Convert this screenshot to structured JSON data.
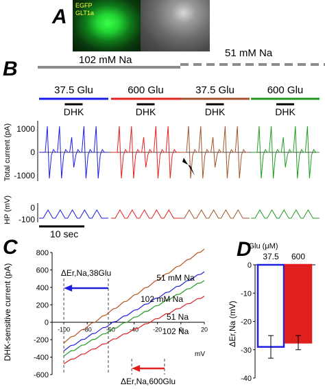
{
  "panel_a": {
    "label": "A",
    "image_labels": [
      "EGFP",
      "GLT1a"
    ]
  },
  "panel_b": {
    "label": "B",
    "bath_conditions": [
      "102 mM Na",
      "51 mM Na"
    ],
    "glu_conditions": [
      {
        "label": "37.5 Glu",
        "color": "#1a1ae6"
      },
      {
        "label": "600 Glu",
        "color": "#e61e1e"
      },
      {
        "label": "37.5 Glu",
        "color": "#a0522d"
      },
      {
        "label": "600 Glu",
        "color": "#1f9a1f"
      }
    ],
    "dhk_label": "DHK",
    "current_axis": {
      "ylabel": "Total current (pA)",
      "ticks": [
        "1000",
        "0",
        "-1000"
      ]
    },
    "hp_axis": {
      "ylabel": "HP (mV)",
      "ticks": [
        "0",
        "-100"
      ]
    },
    "scale_bar_label": "10 sec"
  },
  "chart_data": [
    {
      "panel": "C",
      "type": "line",
      "xlabel": "mV",
      "ylabel": "DHK-sensitive current (pA)",
      "xlim": [
        -110,
        20
      ],
      "ylim": [
        -600,
        800
      ],
      "xticks": [
        -100,
        -80,
        -60,
        -40,
        -20,
        0,
        20
      ],
      "yticks": [
        800,
        600,
        400,
        200,
        0,
        -200,
        -400,
        -600
      ],
      "series": [
        {
          "name": "51 mM Na",
          "color": "#b5541c",
          "x": [
            -100,
            20
          ],
          "y": [
            -230,
            840
          ]
        },
        {
          "name": "102 mM Na",
          "color": "#1f1fe0",
          "x": [
            -100,
            20
          ],
          "y": [
            -320,
            580
          ]
        },
        {
          "name": "51 Na",
          "color": "#1f9a1f",
          "x": [
            -100,
            20
          ],
          "y": [
            -380,
            480
          ]
        },
        {
          "name": "102 Na",
          "color": "#e01f1f",
          "x": [
            -100,
            20
          ],
          "y": [
            -470,
            300
          ]
        }
      ],
      "annotations": [
        {
          "label": "ΔEr,Na,38Glu",
          "color": "#1f1fe0",
          "from": -62,
          "to": -100
        },
        {
          "label": "ΔEr,Na,600Glu",
          "color": "#e01f1f",
          "from": -14,
          "to": -42
        }
      ]
    },
    {
      "panel": "D",
      "type": "bar",
      "legend_title": "Glu (μM)",
      "categories": [
        "37.5",
        "600"
      ],
      "category_colors": [
        "#1f1fe0",
        "#e01f1f"
      ],
      "values": [
        -29,
        -27.5
      ],
      "errors": [
        4,
        2.5
      ],
      "ylabel": "ΔEr,Na (mV)",
      "ylim": [
        -40,
        0
      ],
      "yticks": [
        0,
        -10,
        -20,
        -30,
        -40
      ]
    }
  ]
}
